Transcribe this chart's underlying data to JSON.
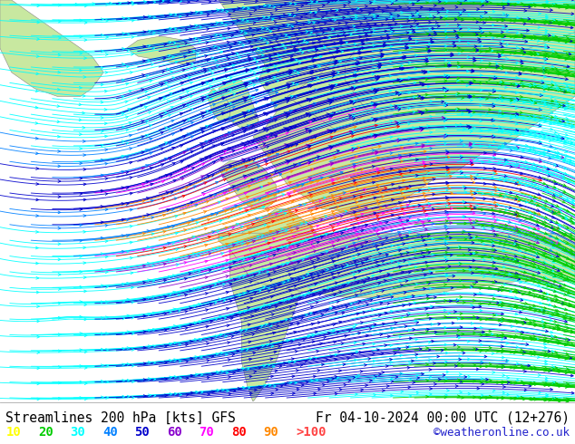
{
  "title_left": "Streamlines 200 hPa [kts] GFS",
  "title_right": "Fr 04-10-2024 00:00 UTC (12+276)",
  "copyright": "©weatheronline.co.uk",
  "legend_values": [
    "10",
    "20",
    "30",
    "40",
    "50",
    "60",
    "70",
    "80",
    "90",
    ">100"
  ],
  "legend_colors": [
    "#ffff00",
    "#00cc00",
    "#00ffff",
    "#0080ff",
    "#0000cc",
    "#8800cc",
    "#ff00ff",
    "#ff0000",
    "#ff8800",
    "#ff4444"
  ],
  "background_color": "#ffffff",
  "land_color": "#c8e8a0",
  "sea_color": "#e8e8e8",
  "coast_color": "#888888",
  "text_color": "#000000",
  "title_fontsize": 10.5,
  "legend_fontsize": 10,
  "fig_width": 6.34,
  "fig_height": 4.9,
  "dpi": 100,
  "jet_colors_by_speed": {
    "10": "#ffff00",
    "20": "#00cc00",
    "30": "#00ffff",
    "40": "#0080ff",
    "50": "#0000cc",
    "60": "#8800cc",
    "70": "#ff00ff",
    "80": "#ff0000",
    "90": "#ff8800",
    "100": "#ff4444"
  }
}
